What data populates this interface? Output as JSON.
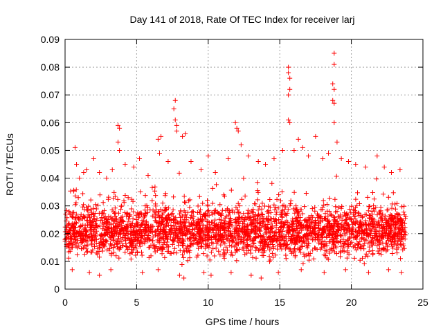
{
  "chart_data": {
    "type": "scatter",
    "title": "Day 141 of 2018, Rate Of TEC Index for receiver larj",
    "xlabel": "GPS time / hours",
    "ylabel": "ROTI / TECUs",
    "xlim": [
      0,
      25
    ],
    "ylim": [
      0,
      0.09
    ],
    "grid": true,
    "marker": "+",
    "marker_color": "#ff0000",
    "x_ticks": [
      0,
      5,
      10,
      15,
      20,
      25
    ],
    "x_tick_labels": [
      "0",
      "5",
      "10",
      "15",
      "20",
      "25"
    ],
    "y_ticks": [
      0,
      0.01,
      0.02,
      0.03,
      0.04,
      0.05,
      0.06,
      0.07,
      0.08,
      0.09
    ],
    "y_tick_labels": [
      "0",
      "0.01",
      "0.02",
      "0.03",
      "0.04",
      "0.05",
      "0.06",
      "0.07",
      "0.08",
      "0.09"
    ],
    "series": [
      {
        "name": "ROTI",
        "x_range": [
          0,
          23.8
        ],
        "dense_band": [
          0.008,
          0.032
        ],
        "points": [
          {
            "x": 0.7,
            "y": 0.051
          },
          {
            "x": 0.8,
            "y": 0.045
          },
          {
            "x": 1.0,
            "y": 0.04
          },
          {
            "x": 1.3,
            "y": 0.042
          },
          {
            "x": 1.5,
            "y": 0.043
          },
          {
            "x": 2.0,
            "y": 0.047
          },
          {
            "x": 2.4,
            "y": 0.042
          },
          {
            "x": 2.9,
            "y": 0.04
          },
          {
            "x": 3.3,
            "y": 0.043
          },
          {
            "x": 3.7,
            "y": 0.059
          },
          {
            "x": 3.7,
            "y": 0.053
          },
          {
            "x": 3.8,
            "y": 0.058
          },
          {
            "x": 3.8,
            "y": 0.05
          },
          {
            "x": 4.2,
            "y": 0.045
          },
          {
            "x": 4.8,
            "y": 0.044
          },
          {
            "x": 5.2,
            "y": 0.047
          },
          {
            "x": 5.8,
            "y": 0.041
          },
          {
            "x": 6.5,
            "y": 0.054
          },
          {
            "x": 6.6,
            "y": 0.049
          },
          {
            "x": 6.7,
            "y": 0.055
          },
          {
            "x": 7.2,
            "y": 0.046
          },
          {
            "x": 7.6,
            "y": 0.065
          },
          {
            "x": 7.7,
            "y": 0.068
          },
          {
            "x": 7.7,
            "y": 0.061
          },
          {
            "x": 7.8,
            "y": 0.059
          },
          {
            "x": 7.8,
            "y": 0.057
          },
          {
            "x": 8.2,
            "y": 0.055
          },
          {
            "x": 8.4,
            "y": 0.056
          },
          {
            "x": 8.8,
            "y": 0.046
          },
          {
            "x": 9.5,
            "y": 0.043
          },
          {
            "x": 10.0,
            "y": 0.048
          },
          {
            "x": 10.5,
            "y": 0.042
          },
          {
            "x": 11.4,
            "y": 0.047
          },
          {
            "x": 11.9,
            "y": 0.06
          },
          {
            "x": 12.0,
            "y": 0.058
          },
          {
            "x": 12.1,
            "y": 0.057
          },
          {
            "x": 12.3,
            "y": 0.052
          },
          {
            "x": 12.8,
            "y": 0.048
          },
          {
            "x": 13.5,
            "y": 0.046
          },
          {
            "x": 14.0,
            "y": 0.045
          },
          {
            "x": 14.6,
            "y": 0.047
          },
          {
            "x": 15.2,
            "y": 0.05
          },
          {
            "x": 15.6,
            "y": 0.08
          },
          {
            "x": 15.6,
            "y": 0.078
          },
          {
            "x": 15.7,
            "y": 0.076
          },
          {
            "x": 15.7,
            "y": 0.072
          },
          {
            "x": 15.6,
            "y": 0.07
          },
          {
            "x": 15.6,
            "y": 0.061
          },
          {
            "x": 15.7,
            "y": 0.06
          },
          {
            "x": 16.0,
            "y": 0.05
          },
          {
            "x": 16.3,
            "y": 0.054
          },
          {
            "x": 16.6,
            "y": 0.051
          },
          {
            "x": 17.0,
            "y": 0.048
          },
          {
            "x": 17.5,
            "y": 0.055
          },
          {
            "x": 18.0,
            "y": 0.047
          },
          {
            "x": 18.4,
            "y": 0.049
          },
          {
            "x": 18.8,
            "y": 0.085
          },
          {
            "x": 18.8,
            "y": 0.081
          },
          {
            "x": 18.7,
            "y": 0.074
          },
          {
            "x": 18.8,
            "y": 0.072
          },
          {
            "x": 18.7,
            "y": 0.068
          },
          {
            "x": 18.8,
            "y": 0.067
          },
          {
            "x": 18.8,
            "y": 0.06
          },
          {
            "x": 19.0,
            "y": 0.053
          },
          {
            "x": 19.3,
            "y": 0.047
          },
          {
            "x": 19.8,
            "y": 0.046
          },
          {
            "x": 20.3,
            "y": 0.045
          },
          {
            "x": 21.0,
            "y": 0.044
          },
          {
            "x": 21.8,
            "y": 0.048
          },
          {
            "x": 22.3,
            "y": 0.044
          },
          {
            "x": 22.8,
            "y": 0.042
          },
          {
            "x": 23.4,
            "y": 0.043
          },
          {
            "x": 0.5,
            "y": 0.007
          },
          {
            "x": 1.7,
            "y": 0.006
          },
          {
            "x": 2.4,
            "y": 0.005
          },
          {
            "x": 3.2,
            "y": 0.007
          },
          {
            "x": 5.4,
            "y": 0.006
          },
          {
            "x": 6.5,
            "y": 0.007
          },
          {
            "x": 8.0,
            "y": 0.005
          },
          {
            "x": 8.3,
            "y": 0.004
          },
          {
            "x": 9.7,
            "y": 0.006
          },
          {
            "x": 10.2,
            "y": 0.005
          },
          {
            "x": 11.6,
            "y": 0.006
          },
          {
            "x": 13.0,
            "y": 0.005
          },
          {
            "x": 13.7,
            "y": 0.004
          },
          {
            "x": 14.9,
            "y": 0.006
          },
          {
            "x": 16.5,
            "y": 0.007
          },
          {
            "x": 18.1,
            "y": 0.006
          },
          {
            "x": 19.6,
            "y": 0.007
          },
          {
            "x": 21.2,
            "y": 0.006
          },
          {
            "x": 22.6,
            "y": 0.007
          },
          {
            "x": 23.5,
            "y": 0.006
          }
        ]
      }
    ]
  }
}
